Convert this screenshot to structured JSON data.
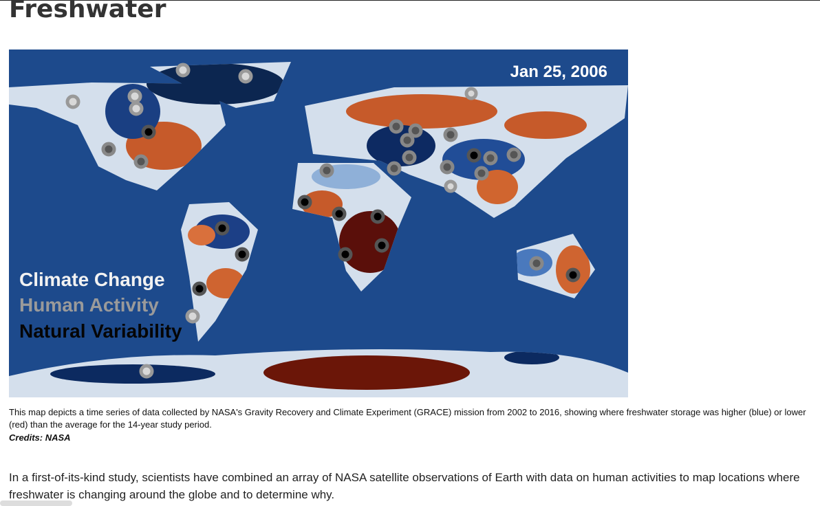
{
  "header": {
    "title": "Freshwater"
  },
  "figure": {
    "date_label": "Jan 25, 2006",
    "legend": [
      "Climate Change",
      "Human Activity",
      "Natural Variability"
    ],
    "caption": "This map depicts a time series of data collected by NASA's Gravity Recovery and Climate Experiment (GRACE) mission from 2002 to 2016, showing where freshwater storage was higher (blue) or lower (red) than the average for the 14-year study period.",
    "credits": "Credits: NASA"
  },
  "body": {
    "paragraph": "In a first-of-its-kind study, scientists have combined an array of NASA satellite observations of Earth with data on human activities to map locations where freshwater is changing around the globe and to determine why."
  }
}
